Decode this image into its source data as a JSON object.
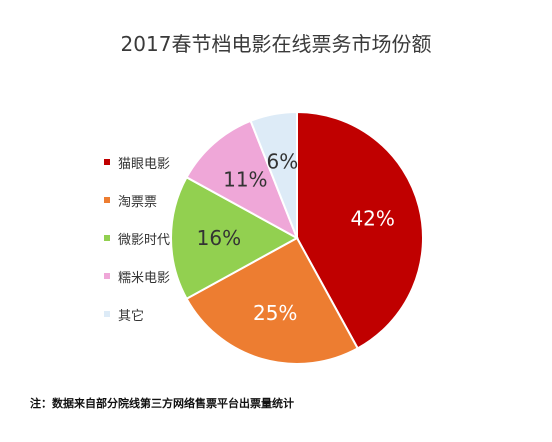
{
  "chart_data": {
    "type": "pie",
    "title": "2017春节档电影在线票务市场份额",
    "slices": [
      {
        "name": "猫眼电影",
        "value": 42,
        "label": "42%",
        "color": "#C00000"
      },
      {
        "name": "淘票票",
        "value": 25,
        "label": "25%",
        "color": "#ED7D31"
      },
      {
        "name": "微影时代",
        "value": 16,
        "label": "16%",
        "color": "#92D050"
      },
      {
        "name": "糯米电影",
        "value": 11,
        "label": "11%",
        "color": "#EFA7D8"
      },
      {
        "name": "其它",
        "value": 6,
        "label": "6%",
        "color": "#DDEBF7"
      }
    ],
    "legend_position": "left",
    "note": "注：数据来自部分院线第三方网络售票平台出票量统计"
  }
}
